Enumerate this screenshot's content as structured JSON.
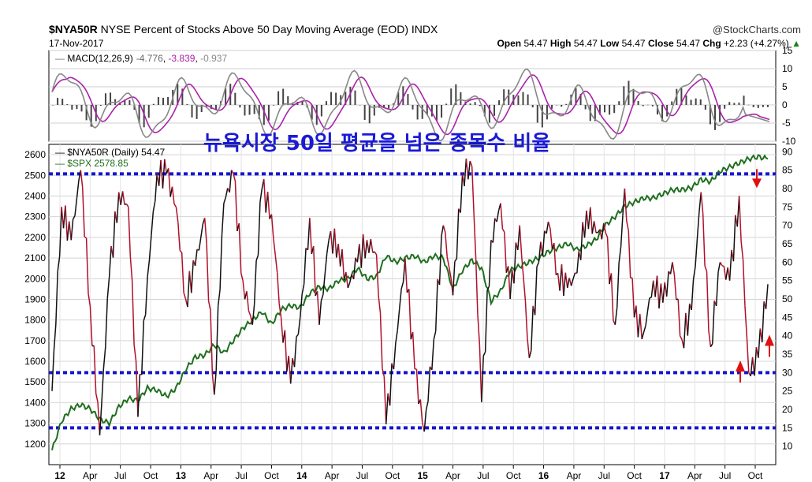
{
  "header": {
    "symbol": "$NYA50R",
    "description": "NYSE Percent of Stocks Above 50 Day Moving Average (EOD)",
    "exchange": "INDX",
    "date": "17-Nov-2017",
    "brand": "@StockCharts.com",
    "open_label": "Open",
    "open": "54.47",
    "high_label": "High",
    "high": "54.47",
    "low_label": "Low",
    "low": "54.47",
    "close_label": "Close",
    "close": "54.47",
    "chg_label": "Chg",
    "chg": "+2.23 (+4.27%)",
    "chg_arrow": "▲"
  },
  "macd_legend": {
    "label": "MACD(12,26,9)",
    "macd": "-4.776",
    "signal": "-3.839",
    "hist": "-0.937"
  },
  "annotation": "뉴욕시장 50일 평균을 넘은 종목수 비율",
  "price_legend": {
    "nya_label": "$NYA50R (Daily) 54.47",
    "spx_label": "$SPX 2578.85"
  },
  "colors": {
    "nya_up": "#111111",
    "nya_down": "#b0102a",
    "spx": "#1f6e1f",
    "macd": "#888888",
    "signal": "#aa22aa",
    "hist": "#444444",
    "hline": "#1515d0",
    "arrow": "#e01010"
  },
  "chart_data": [
    {
      "type": "line",
      "panel": "MACD(12,26,9)",
      "ylim": [
        -10,
        15
      ],
      "right_ticks": [
        "15",
        "10",
        "5",
        "0",
        "-5",
        "-10"
      ],
      "latest": {
        "macd": -4.776,
        "signal": -3.839,
        "hist": -0.937
      }
    },
    {
      "type": "line",
      "x_ticks": [
        "12",
        "Apr",
        "Jul",
        "Oct",
        "13",
        "Apr",
        "Jul",
        "Oct",
        "14",
        "Apr",
        "Jul",
        "Oct",
        "15",
        "Apr",
        "Jul",
        "Oct",
        "16",
        "Apr",
        "Jul",
        "Oct",
        "17",
        "Apr",
        "Jul",
        "Oct"
      ],
      "left_axis": {
        "label": "",
        "ylim": [
          1100,
          2650
        ],
        "ticks": [
          "2600",
          "2500",
          "2400",
          "2300",
          "2200",
          "2100",
          "2000",
          "1900",
          "1800",
          "1700",
          "1600",
          "1500",
          "1400",
          "1300",
          "1200"
        ]
      },
      "right_axis": {
        "label": "",
        "ylim": [
          5,
          92
        ],
        "ticks": [
          "90",
          "85",
          "80",
          "75",
          "70",
          "65",
          "60",
          "55",
          "50",
          "45",
          "40",
          "35",
          "30",
          "25",
          "20",
          "15",
          "10"
        ]
      },
      "series": [
        {
          "name": "$NYA50R (Daily) 54.47",
          "axis": "right",
          "values": [
            25,
            75,
            66,
            85,
            48,
            13,
            56,
            79,
            75,
            18,
            56,
            84,
            84,
            75,
            50,
            59,
            72,
            24,
            76,
            84,
            55,
            43,
            80,
            73,
            45,
            27,
            45,
            72,
            43,
            66,
            65,
            53,
            60,
            66,
            62,
            16,
            38,
            61,
            31,
            14,
            39,
            70,
            51,
            84,
            86,
            22,
            66,
            76,
            50,
            70,
            34,
            60,
            71,
            57,
            53,
            57,
            74,
            68,
            68,
            43,
            80,
            45,
            41,
            55,
            49,
            60,
            39,
            47,
            79,
            37,
            60,
            55,
            78,
            30,
            34,
            54
          ]
        },
        {
          "name": "$SPX 2578.85",
          "axis": "left",
          "values": [
            1170,
            1310,
            1370,
            1390,
            1370,
            1320,
            1300,
            1380,
            1420,
            1410,
            1470,
            1460,
            1430,
            1470,
            1560,
            1620,
            1630,
            1680,
            1640,
            1700,
            1760,
            1800,
            1840,
            1780,
            1850,
            1870,
            1860,
            1930,
            1960,
            1950,
            1990,
            2000,
            2050,
            2000,
            2010,
            2110,
            2080,
            2100,
            2110,
            2080,
            2110,
            2100,
            1950,
            2040,
            2090,
            2050,
            1890,
            1940,
            2040,
            2060,
            2080,
            2100,
            2130,
            2150,
            2170,
            2140,
            2160,
            2190,
            2260,
            2300,
            2350,
            2370,
            2390,
            2390,
            2410,
            2430,
            2430,
            2440,
            2480,
            2470,
            2520,
            2540,
            2560,
            2580,
            2590,
            2580
          ]
        }
      ],
      "reference_lines_right_axis": [
        84,
        30,
        15
      ],
      "annotation_arrows": [
        {
          "direction": "down",
          "at_value": 81
        },
        {
          "direction": "up",
          "at_value": 32
        },
        {
          "direction": "up",
          "at_value": 39
        }
      ],
      "legend": "top-left",
      "grid": true
    }
  ]
}
